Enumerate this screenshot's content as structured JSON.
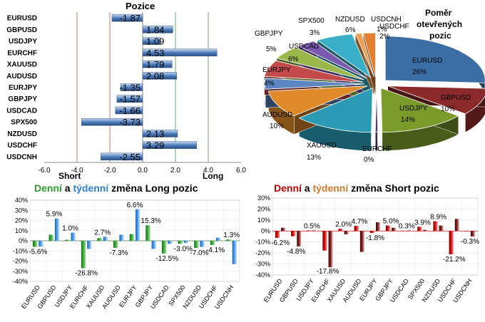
{
  "pozice": {
    "title": "Pozice",
    "short_label": "Short",
    "long_label": "Long"
  },
  "pomer": {
    "title_line1": "Poměr",
    "title_line2": "otevřených",
    "title_line3": "pozic"
  },
  "long_title": {
    "denni": "Denní",
    "a": "a",
    "tydenni": "týdenní",
    "rest": "změna Long pozic"
  },
  "short_title": {
    "denni": "Denní",
    "a": "a",
    "tydenni": "týdenní",
    "rest": "změna Short pozic"
  },
  "colors": {
    "green": "#2e9e2e",
    "blue": "#2f7fd6",
    "red": "#c00000",
    "orange": "#d27a30"
  },
  "chart_data": [
    {
      "type": "bar",
      "orientation": "horizontal",
      "title": "Pozice",
      "categories": [
        "EURUSD",
        "GBPUSD",
        "USDJPY",
        "EURCHF",
        "XAUUSD",
        "AUDUSD",
        "EURJPY",
        "GBPJPY",
        "USDCAD",
        "SPX500",
        "NZDUSD",
        "USDCHF",
        "USDCNH"
      ],
      "values": [
        -1.87,
        1.84,
        1.09,
        4.53,
        1.79,
        2.08,
        -1.35,
        -1.57,
        -1.66,
        -3.73,
        2.13,
        3.29,
        -2.55
      ],
      "xlim": [
        -6,
        6
      ],
      "xticks": [
        "-6.0",
        "-4.0",
        "-2.0",
        "0.0",
        "2.0",
        "4.0",
        "6.0"
      ],
      "grid": true
    },
    {
      "type": "pie",
      "title": "Poměr otevřených pozic",
      "labels": [
        "EURUSD",
        "GBPUSD",
        "USDJPY",
        "EURCHF",
        "XAUUSD",
        "AUDUSD",
        "EURJPY",
        "USDCAD",
        "GBPJPY",
        "SPX500",
        "NZDUSD",
        "USDCNH",
        "USDCHF"
      ],
      "values": [
        26,
        10,
        14,
        0,
        13,
        10,
        4,
        6,
        5,
        3,
        6,
        1,
        2
      ],
      "value_labels": [
        "26%",
        "10%",
        "14%",
        "0%",
        "13%",
        "10%",
        "4%",
        "6%",
        "5%",
        "3%",
        "6%",
        "1%",
        "2%"
      ],
      "colors": [
        "#3a6ea5",
        "#8b2a2a",
        "#7a9a2a",
        "#5a3a7a",
        "#2a9ab5",
        "#e08a2a",
        "#5b86c2",
        "#c24a4a",
        "#9ab84a",
        "#7a5ab0",
        "#3ab0c8",
        "#f0a050",
        "#e08030"
      ]
    },
    {
      "type": "bar",
      "title": "Denní a týdenní změna Long pozic",
      "categories": [
        "EURUSD",
        "GBPUSD",
        "USDJPY",
        "EURCHF",
        "XAUUSD",
        "AUDUSD",
        "EURJPY",
        "GBPJPY",
        "USDCAD",
        "SPX500",
        "NZDUSD",
        "USDCHF",
        "USDCNH"
      ],
      "series": [
        {
          "name": "Denní",
          "values": [
            -6,
            6,
            1,
            -27,
            2.7,
            -7,
            6.6,
            15.3,
            -12.5,
            -3,
            -7,
            -4.1,
            1.3
          ]
        },
        {
          "name": "týdenní",
          "values": [
            -5.6,
            22,
            8,
            -8,
            4,
            6,
            31,
            -8,
            -3,
            -2,
            -6,
            3,
            -23
          ]
        }
      ],
      "data_labels": [
        {
          "category": "EURUSD",
          "text": "-5.6%"
        },
        {
          "category": "GBPUSD",
          "text": "5.9%"
        },
        {
          "category": "USDJPY",
          "text": "1.0%"
        },
        {
          "category": "EURCHF",
          "text": "-26.8%"
        },
        {
          "category": "XAUUSD",
          "text": "2.7%"
        },
        {
          "category": "AUDUSD",
          "text": "-7.3%"
        },
        {
          "category": "EURJPY",
          "text": "6.6%"
        },
        {
          "category": "GBPJPY",
          "text": "15.3%"
        },
        {
          "category": "USDCAD",
          "text": "-12.5%"
        },
        {
          "category": "SPX500",
          "text": "-3.0%"
        },
        {
          "category": "NZDUSD",
          "text": "-7.0%"
        },
        {
          "category": "USDCHF",
          "text": "-4.1%"
        },
        {
          "category": "USDCNH",
          "text": "1.3%"
        }
      ],
      "ylim": [
        -40,
        40
      ],
      "yticks": [
        "-40%",
        "-30%",
        "-20%",
        "-10%",
        "0%",
        "10%",
        "20%",
        "30%",
        "40%"
      ]
    },
    {
      "type": "bar",
      "title": "Denní a týdenní změna Short pozic",
      "categories": [
        "EURUSD",
        "GBPUSD",
        "USDJPY",
        "EURCHF",
        "XAUUSD",
        "AUDUSD",
        "EURJPY",
        "GBPJPY",
        "USDCAD",
        "SPX500",
        "NZDUSD",
        "USDCHF",
        "USDCNH"
      ],
      "series": [
        {
          "name": "Denní",
          "values": [
            -6.2,
            -4.8,
            0.5,
            -17.8,
            2.0,
            4.7,
            -1.8,
            5.0,
            0.3,
            3.9,
            8.9,
            -21.2,
            -0.3
          ]
        },
        {
          "name": "týdenní",
          "values": [
            3,
            -14,
            0.5,
            -33,
            -3,
            -19,
            8,
            3,
            0.5,
            1,
            5,
            11,
            -5
          ]
        }
      ],
      "data_labels": [
        {
          "category": "EURUSD",
          "text": "-6.2%"
        },
        {
          "category": "GBPUSD",
          "text": "-4.8%"
        },
        {
          "category": "USDJPY",
          "text": "0.5%"
        },
        {
          "category": "EURCHF",
          "text": "-17.8%"
        },
        {
          "category": "XAUUSD",
          "text": "2.0%"
        },
        {
          "category": "AUDUSD",
          "text": "4.7%"
        },
        {
          "category": "EURJPY",
          "text": "-1.8%"
        },
        {
          "category": "GBPJPY",
          "text": "5.0%"
        },
        {
          "category": "USDCAD",
          "text": "0.3%"
        },
        {
          "category": "SPX500",
          "text": "3.9%"
        },
        {
          "category": "NZDUSD",
          "text": "8.9%"
        },
        {
          "category": "USDCHF",
          "text": "-21.2%"
        },
        {
          "category": "USDCNH",
          "text": "-0.3%"
        }
      ],
      "ylim": [
        -40,
        30
      ],
      "yticks": [
        "-40%",
        "-30%",
        "-20%",
        "-10%",
        "0%",
        "10%",
        "20%",
        "30%"
      ]
    }
  ]
}
